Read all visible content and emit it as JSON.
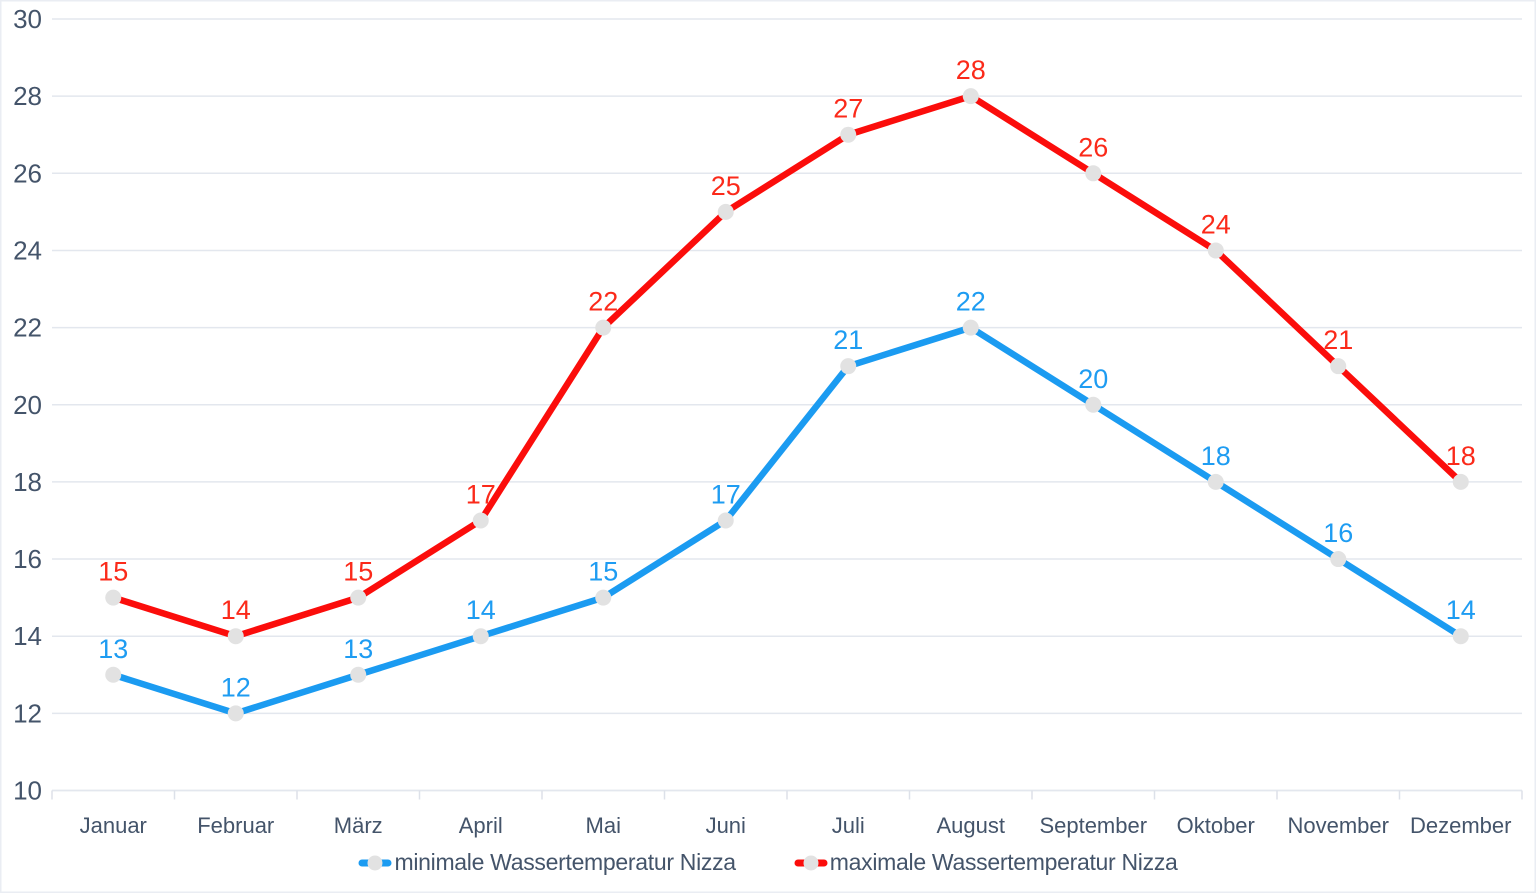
{
  "chart_data": {
    "type": "line",
    "categories": [
      "Januar",
      "Februar",
      "März",
      "April",
      "Mai",
      "Juni",
      "Juli",
      "August",
      "September",
      "Oktober",
      "November",
      "Dezember"
    ],
    "series": [
      {
        "name": "minimale Wassertemperatur Nizza",
        "values": [
          13,
          12,
          13,
          14,
          15,
          17,
          21,
          22,
          20,
          18,
          16,
          14
        ],
        "line_color": "#1b9bf1",
        "label_color": "#1e9cf2"
      },
      {
        "name": "maximale Wassertemperatur Nizza",
        "values": [
          15,
          14,
          15,
          17,
          22,
          25,
          27,
          28,
          26,
          24,
          21,
          18
        ],
        "line_color": "#fb0d0b",
        "label_color": "#fb2a1a"
      }
    ],
    "ylim": [
      10,
      30
    ],
    "ytick_step": 2,
    "yticks": [
      10,
      12,
      14,
      16,
      18,
      20,
      22,
      24,
      26,
      28,
      30
    ],
    "grid": "horizontal",
    "legend_position": "bottom",
    "data_labels": "above-points",
    "marker_shape": "circle"
  },
  "colors": {
    "gridline": "#e3e7ee",
    "axis_line": "#e3e7ee",
    "tick": "#dde1e9",
    "axis_text": "#44546a",
    "marker_fill": "#e2e2e2",
    "chart_border": "#eaedf3"
  }
}
